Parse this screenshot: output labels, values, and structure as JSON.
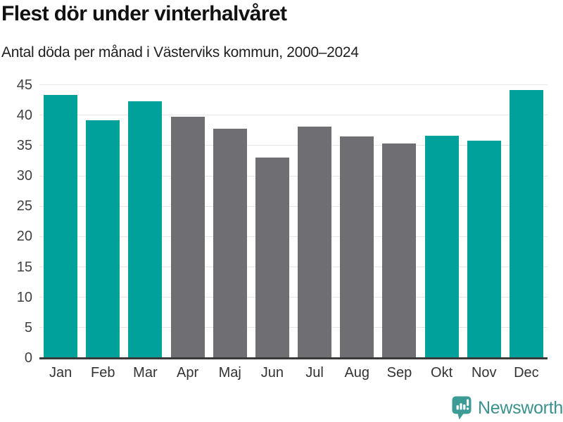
{
  "header": {
    "title": "Flest dör under vinterhalvåret",
    "subtitle": "Antal döda per månad i Västerviks kommun, 2000–2024"
  },
  "chart_data": {
    "type": "bar",
    "categories": [
      "Jan",
      "Feb",
      "Mar",
      "Apr",
      "Maj",
      "Jun",
      "Jul",
      "Aug",
      "Sep",
      "Okt",
      "Nov",
      "Dec"
    ],
    "values": [
      43.4,
      39.2,
      42.3,
      39.7,
      37.8,
      33.0,
      38.1,
      36.5,
      35.4,
      36.6,
      35.8,
      44.1
    ],
    "bar_colors": [
      "teal",
      "teal",
      "teal",
      "gray",
      "gray",
      "gray",
      "gray",
      "gray",
      "gray",
      "teal",
      "teal",
      "teal"
    ],
    "title": "Flest dör under vinterhalvåret",
    "subtitle": "Antal döda per månad i Västerviks kommun, 2000–2024",
    "xlabel": "",
    "ylabel": "",
    "ylim": [
      0,
      45
    ],
    "yticks": [
      0,
      5,
      10,
      15,
      20,
      25,
      30,
      35,
      40,
      45
    ],
    "grid": true,
    "legend": false
  },
  "colors": {
    "teal": "#00a09b",
    "gray": "#6e6e73",
    "gridline": "#e6e6e6",
    "axis": "#3a3a3a",
    "tick_label": "#404040",
    "brand_teal": "#3b918d",
    "logo_bubble": "#3d9b96"
  },
  "footer": {
    "brand": "Newsworthy",
    "logo_icon": "newsworthy-chart-bubble-icon"
  }
}
